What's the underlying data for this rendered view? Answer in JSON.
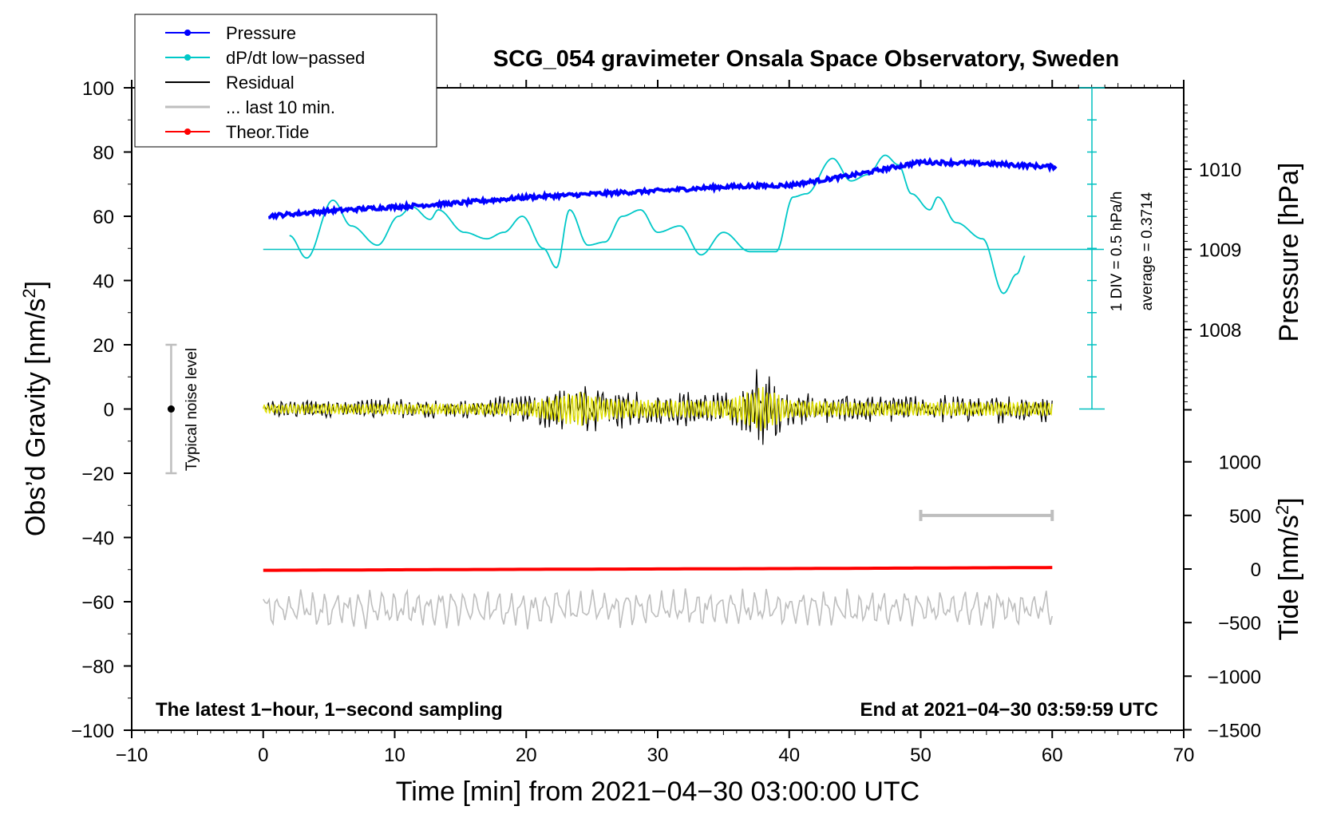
{
  "chart_data": {
    "type": "line",
    "title": "SCG_054 gravimeter Onsala Space Observatory, Sweden",
    "xlabel": "Time [min] from 2021−04−30 03:00:00 UTC",
    "xlim": [
      -10,
      70
    ],
    "x_ticks": [
      -10,
      0,
      10,
      20,
      30,
      40,
      50,
      60,
      70
    ],
    "x_tick_labels": [
      "−10",
      "0",
      "10",
      "20",
      "30",
      "40",
      "50",
      "60",
      "70"
    ],
    "left_axis": {
      "label": "Obs’d Gravity [nm/s",
      "label_sup": "2",
      "label_end": "]",
      "ylim": [
        -100,
        100
      ],
      "ticks": [
        -100,
        -80,
        -60,
        -40,
        -20,
        0,
        20,
        40,
        60,
        80,
        100
      ],
      "tick_labels": [
        "−100",
        "−80",
        "−60",
        "−40",
        "−20",
        "0",
        "20",
        "40",
        "60",
        "80",
        "100"
      ]
    },
    "pressure_axis": {
      "label": "Pressure [hPa]",
      "ticks": [
        1008,
        1009,
        1010
      ],
      "tick_labels": [
        "1008",
        "1009",
        "1010"
      ]
    },
    "tide_axis": {
      "label": "Tide [nm/s",
      "label_sup": "2",
      "label_end": "]",
      "ticks": [
        -1500,
        -1000,
        -500,
        0,
        500,
        1000
      ],
      "tick_labels": [
        "−1500",
        "−1000",
        "−500",
        "0",
        "500",
        "1000"
      ]
    },
    "legend": [
      {
        "label": "Pressure",
        "color": "#0000ff",
        "marker": true
      },
      {
        "label": "dP/dt low−passed",
        "color": "#00c8c8",
        "marker": true
      },
      {
        "label": "Residual",
        "color": "#000000",
        "marker": false
      },
      {
        "label": "... last 10 min.",
        "color": "#bebebe",
        "marker": false
      },
      {
        "label": "Theor.Tide",
        "color": "#ff0000",
        "marker": true
      }
    ],
    "series": [
      {
        "name": "Pressure",
        "unit": "hPa",
        "color": "#0000ff",
        "x": [
          0,
          5,
          10,
          15,
          20,
          25,
          30,
          35,
          40,
          45,
          50,
          55,
          60
        ],
        "values": [
          1009.41,
          1009.48,
          1009.53,
          1009.58,
          1009.65,
          1009.69,
          1009.73,
          1009.78,
          1009.8,
          1009.93,
          1010.09,
          1010.07,
          1010.03
        ]
      },
      {
        "name": "dP/dt low-passed",
        "unit": "nm/s2 (plot scale)",
        "color": "#00c8c8",
        "x": [
          2,
          3.3,
          5.3,
          6.7,
          8.7,
          10.3,
          11.3,
          12.7,
          13.3,
          15.3,
          17,
          18.3,
          19.7,
          21.3,
          22.3,
          23.3,
          24.7,
          26,
          27.3,
          28.7,
          30,
          31.7,
          33.3,
          35,
          37,
          39,
          40.3,
          41.3,
          43.3,
          44.7,
          46,
          47.3,
          48.3,
          49.3,
          50.7,
          51.3,
          52.7,
          54.7,
          56.3,
          57.3,
          58
        ],
        "values": [
          54,
          47,
          65,
          57,
          51,
          60,
          63,
          59,
          62,
          55,
          53,
          55,
          60,
          50,
          44,
          62,
          51,
          52,
          60,
          62,
          55,
          57,
          48,
          55,
          49,
          49,
          66,
          67,
          78,
          71,
          73,
          79,
          76,
          67,
          62,
          66,
          58,
          53,
          36,
          42,
          48
        ]
      },
      {
        "name": "Residual",
        "unit": "nm/s2",
        "color": "#000000",
        "x": [
          0,
          5,
          10,
          15,
          20,
          22,
          24,
          26,
          30,
          35,
          37,
          38,
          40,
          45,
          50,
          55,
          60
        ],
        "amplitude": [
          2.5,
          3,
          3,
          3,
          4,
          7,
          10,
          6,
          5,
          5,
          10,
          13,
          5,
          4,
          4,
          4,
          4
        ]
      },
      {
        "name": "... last 10 min.",
        "unit": "nm/s2",
        "color": "#bebebe",
        "center": -62,
        "x": [
          0,
          60
        ],
        "amplitude": [
          6,
          6
        ]
      },
      {
        "name": "Theor.Tide",
        "unit": "nm/s2 (tide axis)",
        "color": "#ff0000",
        "x": [
          0,
          20,
          40,
          60
        ],
        "values": [
          -12,
          -3,
          4,
          14
        ]
      }
    ],
    "pressure_reference": {
      "baseline_value": 1009,
      "scale_label": "1 DIV = 0.5 hPa/h",
      "average_label": "average = 0.3714"
    },
    "noise_bar": {
      "label": "Typical noise level",
      "x": -7,
      "ylim": [
        -20,
        20
      ]
    },
    "last_10min_marker": {
      "x": [
        50,
        60
      ],
      "tide_value": 500
    },
    "footer_left": "The latest 1−hour, 1−second sampling",
    "footer_right": "End at 2021−04−30 03:59:59 UTC"
  }
}
